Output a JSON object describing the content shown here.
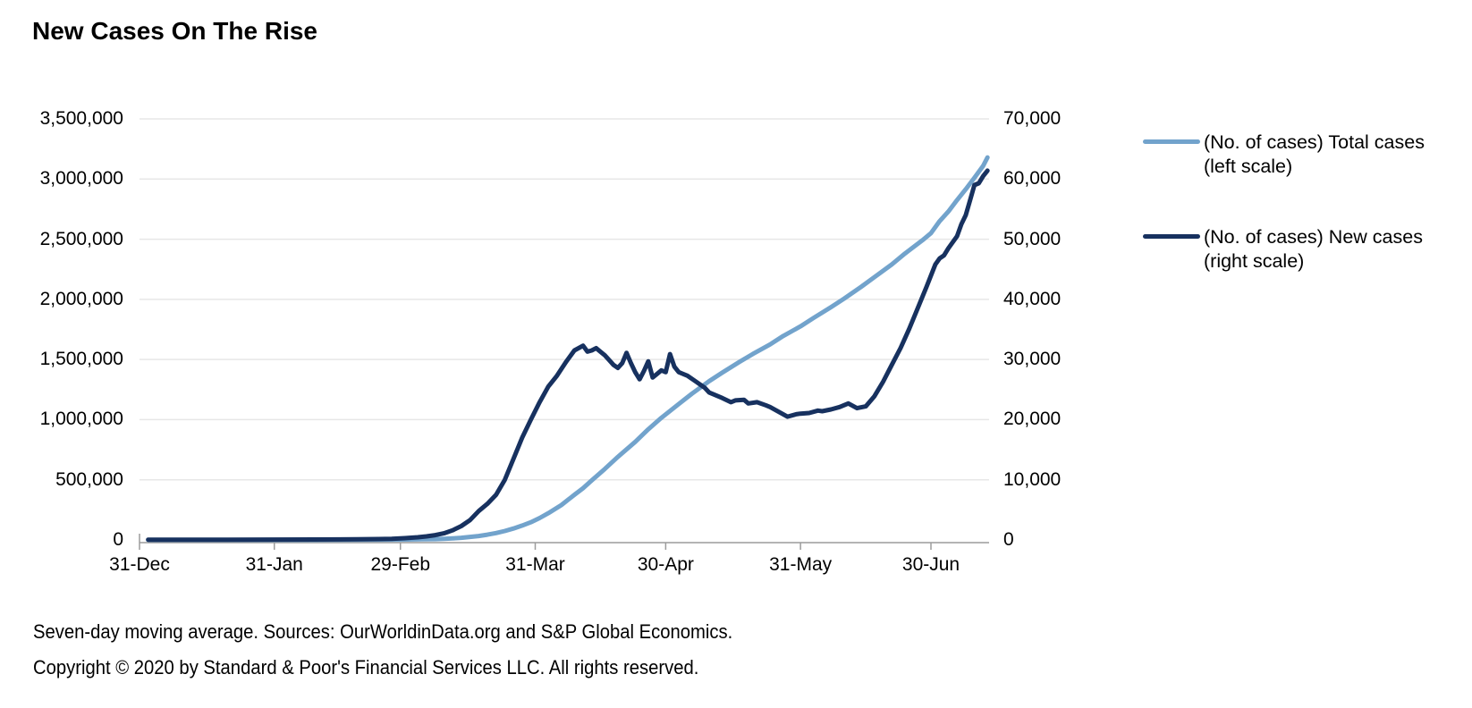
{
  "title": "New Cases On The Rise",
  "footnotes": {
    "sources": "Seven-day moving average. Sources: OurWorldinData.org and S&P Global Economics.",
    "copyright": "Copyright © 2020 by Standard & Poor's Financial Services LLC. All rights reserved."
  },
  "colors": {
    "background": "#FFFFFF",
    "grid": "#E7E7E7",
    "axis": "#9C9C9C",
    "text": "#000000",
    "total_cases_line": "#72A3CC",
    "new_cases_line": "#17315F"
  },
  "chart_data": {
    "type": "line",
    "title": "New Cases On The Rise",
    "grid": "horizontal",
    "legend_position": "right",
    "x_axis": {
      "tick_labels": [
        "31-Dec",
        "31-Jan",
        "29-Feb",
        "31-Mar",
        "30-Apr",
        "31-May",
        "30-Jun"
      ],
      "tick_days": [
        0,
        31,
        60,
        91,
        121,
        152,
        182
      ],
      "start": "31-Dec",
      "end_day": 195
    },
    "left_axis": {
      "min": 0,
      "max": 3500000,
      "tick_interval": 500000,
      "tick_labels": [
        "3,500,000",
        "3,000,000",
        "2,500,000",
        "2,000,000",
        "1,500,000",
        "1,000,000",
        "500,000",
        "0"
      ]
    },
    "right_axis": {
      "min": 0,
      "max": 70000,
      "tick_interval": 10000,
      "tick_labels": [
        "70,000",
        "60,000",
        "50,000",
        "40,000",
        "30,000",
        "20,000",
        "10,000",
        "0"
      ]
    },
    "series": [
      {
        "name": "(No. of cases) Total cases (left scale)",
        "legend_lines": [
          "(No. of cases) Total cases",
          "(left scale)"
        ],
        "axis": "left",
        "color": "#72A3CC",
        "points": [
          [
            2,
            0
          ],
          [
            20,
            0
          ],
          [
            40,
            300
          ],
          [
            55,
            1500
          ],
          [
            60,
            3000
          ],
          [
            65,
            5000
          ],
          [
            68,
            7000
          ],
          [
            70,
            9000
          ],
          [
            72,
            13000
          ],
          [
            74,
            18000
          ],
          [
            76,
            25000
          ],
          [
            78,
            33000
          ],
          [
            80,
            44000
          ],
          [
            82,
            57000
          ],
          [
            84,
            74000
          ],
          [
            86,
            95000
          ],
          [
            88,
            120000
          ],
          [
            90,
            147000
          ],
          [
            92,
            182000
          ],
          [
            94,
            222000
          ],
          [
            97,
            290000
          ],
          [
            100,
            375000
          ],
          [
            102,
            430000
          ],
          [
            104,
            495000
          ],
          [
            107,
            590000
          ],
          [
            110,
            690000
          ],
          [
            114,
            815000
          ],
          [
            117,
            920000
          ],
          [
            120,
            1015000
          ],
          [
            124,
            1130000
          ],
          [
            127,
            1215000
          ],
          [
            131,
            1320000
          ],
          [
            134,
            1390000
          ],
          [
            138,
            1480000
          ],
          [
            141,
            1545000
          ],
          [
            145,
            1625000
          ],
          [
            148,
            1695000
          ],
          [
            152,
            1775000
          ],
          [
            155,
            1845000
          ],
          [
            159,
            1935000
          ],
          [
            162,
            2005000
          ],
          [
            166,
            2105000
          ],
          [
            169,
            2185000
          ],
          [
            173,
            2290000
          ],
          [
            176,
            2380000
          ],
          [
            180,
            2490000
          ],
          [
            182,
            2550000
          ],
          [
            184,
            2650000
          ],
          [
            186,
            2730000
          ],
          [
            188,
            2825000
          ],
          [
            190,
            2915000
          ],
          [
            192,
            3010000
          ],
          [
            194,
            3110000
          ],
          [
            195,
            3180000
          ]
        ]
      },
      {
        "name": "(No. of cases) New cases (right scale)",
        "legend_lines": [
          "(No. of cases) New cases",
          "(right scale)"
        ],
        "axis": "right",
        "color": "#17315F",
        "points": [
          [
            2,
            50
          ],
          [
            20,
            50
          ],
          [
            40,
            80
          ],
          [
            50,
            100
          ],
          [
            55,
            150
          ],
          [
            58,
            200
          ],
          [
            61,
            300
          ],
          [
            64,
            450
          ],
          [
            66,
            600
          ],
          [
            68,
            800
          ],
          [
            70,
            1100
          ],
          [
            72,
            1600
          ],
          [
            74,
            2300
          ],
          [
            76,
            3300
          ],
          [
            78,
            4800
          ],
          [
            80,
            6000
          ],
          [
            82,
            7500
          ],
          [
            84,
            10000
          ],
          [
            86,
            13500
          ],
          [
            88,
            17000
          ],
          [
            90,
            20000
          ],
          [
            92,
            22900
          ],
          [
            94,
            25500
          ],
          [
            96,
            27300
          ],
          [
            98,
            29500
          ],
          [
            100,
            31500
          ],
          [
            102,
            32300
          ],
          [
            103,
            31300
          ],
          [
            104,
            31500
          ],
          [
            105,
            31900
          ],
          [
            106,
            31300
          ],
          [
            107,
            30700
          ],
          [
            108,
            29900
          ],
          [
            109,
            29100
          ],
          [
            110,
            28600
          ],
          [
            111,
            29400
          ],
          [
            112,
            31100
          ],
          [
            113,
            29400
          ],
          [
            114,
            27900
          ],
          [
            115,
            26700
          ],
          [
            116,
            28100
          ],
          [
            117,
            29700
          ],
          [
            118,
            27000
          ],
          [
            119,
            27600
          ],
          [
            120,
            28200
          ],
          [
            121,
            27900
          ],
          [
            122,
            30900
          ],
          [
            123,
            28800
          ],
          [
            124,
            27900
          ],
          [
            126,
            27300
          ],
          [
            128,
            26300
          ],
          [
            130,
            25300
          ],
          [
            131,
            24500
          ],
          [
            134,
            23600
          ],
          [
            136,
            22900
          ],
          [
            137,
            23200
          ],
          [
            139,
            23300
          ],
          [
            140,
            22700
          ],
          [
            142,
            22900
          ],
          [
            144,
            22400
          ],
          [
            145,
            22100
          ],
          [
            147,
            21300
          ],
          [
            149,
            20500
          ],
          [
            151,
            20900
          ],
          [
            152,
            21000
          ],
          [
            154,
            21100
          ],
          [
            156,
            21500
          ],
          [
            157,
            21400
          ],
          [
            159,
            21700
          ],
          [
            161,
            22100
          ],
          [
            163,
            22700
          ],
          [
            165,
            21900
          ],
          [
            167,
            22200
          ],
          [
            169,
            23900
          ],
          [
            171,
            26300
          ],
          [
            173,
            29100
          ],
          [
            175,
            31900
          ],
          [
            177,
            35100
          ],
          [
            179,
            38600
          ],
          [
            181,
            42100
          ],
          [
            183,
            45800
          ],
          [
            184,
            46800
          ],
          [
            185,
            47300
          ],
          [
            186,
            48500
          ],
          [
            188,
            50500
          ],
          [
            189,
            52500
          ],
          [
            190,
            54000
          ],
          [
            191,
            56500
          ],
          [
            192,
            59000
          ],
          [
            193,
            59300
          ],
          [
            194,
            60500
          ],
          [
            195,
            61400
          ]
        ]
      }
    ]
  }
}
